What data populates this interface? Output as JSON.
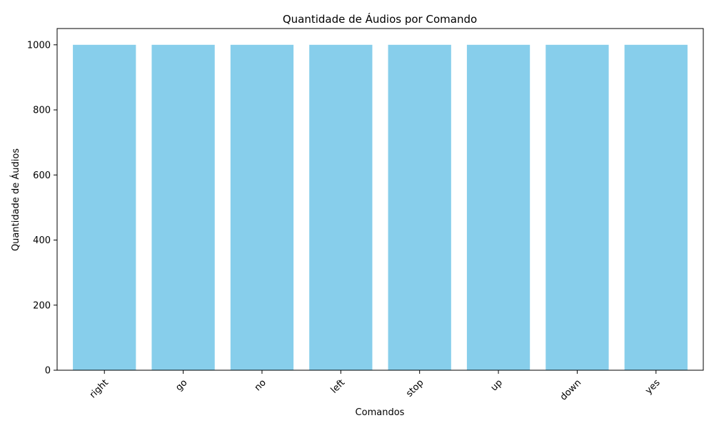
{
  "chart_data": {
    "type": "bar",
    "title": "Quantidade de Áudios por Comando",
    "xlabel": "Comandos",
    "ylabel": "Quantidade de Áudios",
    "categories": [
      "right",
      "go",
      "no",
      "left",
      "stop",
      "up",
      "down",
      "yes"
    ],
    "values": [
      1000,
      1000,
      1000,
      1000,
      1000,
      1000,
      1000,
      1000
    ],
    "ylim": [
      0,
      1050
    ],
    "yticks": [
      0,
      200,
      400,
      600,
      800,
      1000
    ],
    "grid": false,
    "legend": "none",
    "bar_color": "#87CEEB"
  }
}
